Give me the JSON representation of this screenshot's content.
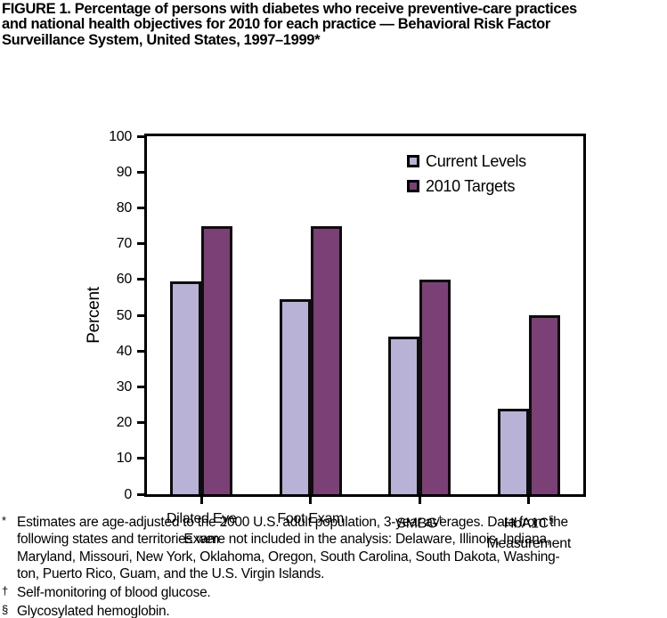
{
  "figure": {
    "title_lines": [
      "FIGURE 1. Percentage of persons with diabetes who receive preventive-care practices",
      "and national health objectives for 2010 for each practice — Behavioral Risk Factor",
      "Surveillance System, United States, 1997–1999*"
    ]
  },
  "chart_data": {
    "type": "bar",
    "title": "",
    "xlabel": "",
    "ylabel": "Percent",
    "ylim": [
      0,
      100
    ],
    "ytick_step": 10,
    "grid": false,
    "legend_position": "top-right-inside",
    "categories": [
      "Dilated Eye Exam",
      "Foot Exam",
      "SMBG",
      "HbA1C Measurement"
    ],
    "category_display": [
      {
        "lines": [
          "Dilated Eye",
          "Exam"
        ],
        "sup": ""
      },
      {
        "lines": [
          "Foot Exam"
        ],
        "sup": ""
      },
      {
        "lines": [
          "SMBG"
        ],
        "sup": "†"
      },
      {
        "lines": [
          "HbA1C",
          "Measurement"
        ],
        "sup": "§"
      }
    ],
    "series": [
      {
        "name": "Current Levels",
        "color": "#b8b2d6",
        "values": [
          59.5,
          54.5,
          44,
          24
        ]
      },
      {
        "name": "2010 Targets",
        "color": "#7b4075",
        "values": [
          75,
          75,
          60,
          50
        ]
      }
    ]
  },
  "footnotes": [
    {
      "marker": "*",
      "lines": [
        "Estimates are age-adjusted to the 2000 U.S. adult population, 3-year averages. Data from the",
        "following states and territories were not included in the analysis: Delaware, Illinois, Indiana,",
        "Maryland, Missouri, New York, Oklahoma, Oregon, South Carolina, South Dakota, Washing-",
        "ton, Puerto Rico, Guam, and the U.S. Virgin Islands."
      ]
    },
    {
      "marker": "†",
      "lines": [
        "Self-monitoring of blood glucose."
      ]
    },
    {
      "marker": "§",
      "lines": [
        "Glycosylated hemoglobin."
      ]
    }
  ],
  "colors": {
    "current_levels": "#b8b2d6",
    "targets_2010": "#7b4075",
    "axis": "#000000",
    "background": "#ffffff"
  }
}
